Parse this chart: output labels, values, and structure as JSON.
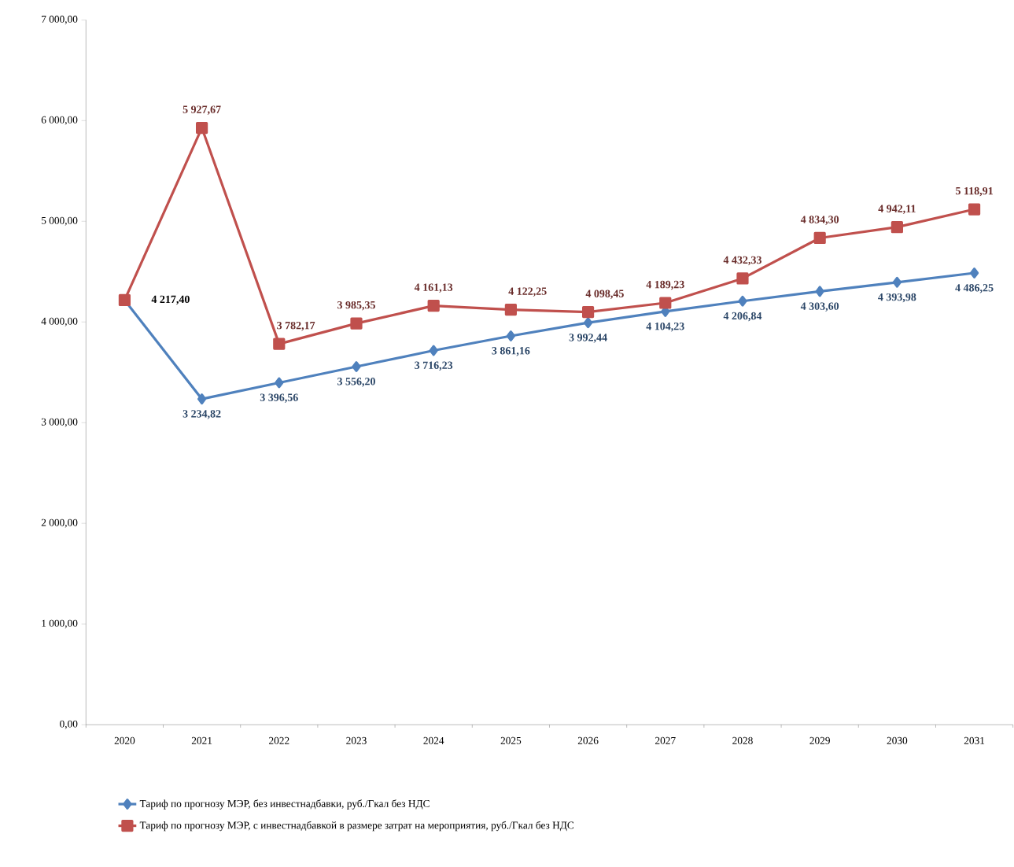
{
  "chart_data": {
    "type": "line",
    "categories": [
      "2020",
      "2021",
      "2022",
      "2023",
      "2024",
      "2025",
      "2026",
      "2027",
      "2028",
      "2029",
      "2030",
      "2031"
    ],
    "series": [
      {
        "name": "Тариф по прогнозу МЭР, без инвестнадбавки, руб./Гкал без НДС",
        "color": "#4f81bd",
        "marker": "diamond",
        "values": [
          4217.4,
          3234.82,
          3396.56,
          3556.2,
          3716.23,
          3861.16,
          3992.44,
          4104.23,
          4206.84,
          4303.6,
          4393.98,
          4486.25
        ],
        "value_labels": [
          null,
          "3 234,82",
          "3 396,56",
          "3 556,20",
          "3 716,23",
          "3 861,16",
          "3 992,44",
          "4 104,23",
          "4 206,84",
          "4 303,60",
          "4 393,98",
          "4 486,25"
        ]
      },
      {
        "name": "Тариф по прогнозу МЭР, с инвестнадбавкой в размере затрат на мероприятия, руб./Гкал без НДС",
        "color": "#c0504d",
        "marker": "square",
        "values": [
          4217.4,
          5927.67,
          3782.17,
          3985.35,
          4161.13,
          4122.25,
          4098.45,
          4189.23,
          4432.33,
          4834.3,
          4942.11,
          5118.91
        ],
        "value_labels": [
          null,
          "5 927,67",
          "3 782,17",
          "3 985,35",
          "4 161,13",
          "4 122,25",
          "4 098,45",
          "4 189,23",
          "4 432,33",
          "4 834,30",
          "4 942,11",
          "5 118,91"
        ]
      }
    ],
    "annotations": [
      {
        "text": "4 217,40",
        "x": "2020",
        "y": 4217.4
      }
    ],
    "ylim": [
      0,
      7000
    ],
    "yticks": [
      {
        "value": 0,
        "label": "0,00"
      },
      {
        "value": 1000,
        "label": "1 000,00"
      },
      {
        "value": 2000,
        "label": "2 000,00"
      },
      {
        "value": 3000,
        "label": "3 000,00"
      },
      {
        "value": 4000,
        "label": "4 000,00"
      },
      {
        "value": 5000,
        "label": "5 000,00"
      },
      {
        "value": 6000,
        "label": "6 000,00"
      },
      {
        "value": 7000,
        "label": "7 000,00"
      }
    ],
    "legend": "bottom",
    "line_style": "solid"
  }
}
